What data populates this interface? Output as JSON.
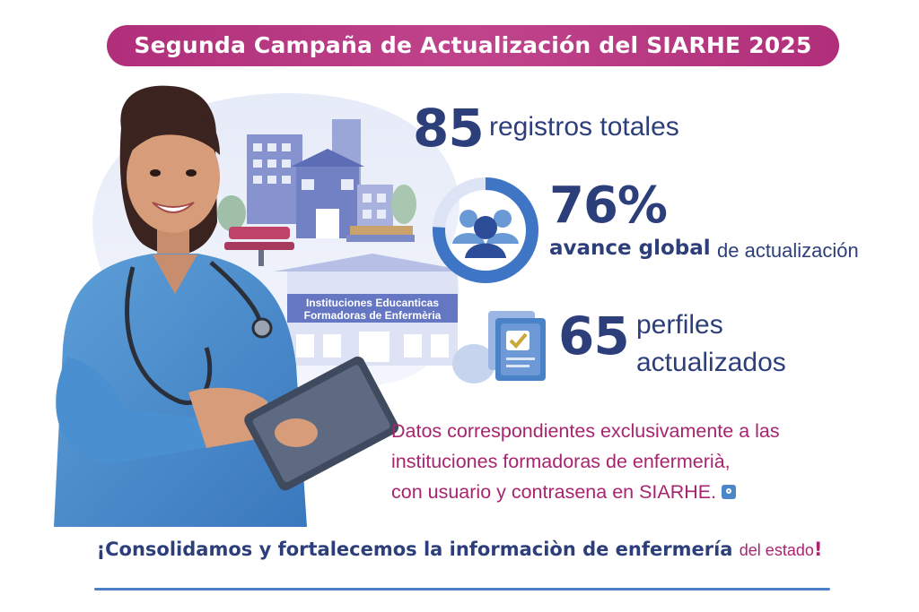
{
  "header": {
    "title": "Segunda Campaña de Actualización del SIARHE 2025"
  },
  "illustration": {
    "sign_line1": "Instituciones Educanticas",
    "sign_line2": "Formadoras de Enfermèria",
    "colors": {
      "scrubs": "#4a8fcf",
      "buildings": "#6f7fc0",
      "bench": "#c0446a",
      "background_blob": "#dfe6f7"
    }
  },
  "stats": {
    "total": {
      "value": "85",
      "label": "registros totales"
    },
    "progress": {
      "value": "76%",
      "fraction": 0.76,
      "label_bold": "avance global",
      "label_rest": "de actualización",
      "icon": "group-people-icon"
    },
    "profiles": {
      "value": "65",
      "label_line1": "perfiles",
      "label_line2": "actualizados",
      "icon": "checked-document-icon"
    }
  },
  "note": {
    "line1": "Datos correspondientes exclusivamente a las",
    "line2": "instituciones formadoras de enfermerià,",
    "line3": "con usuario y contrasena en SIARHE.",
    "icon": "lock-icon"
  },
  "footer": {
    "main": "¡Consolidamos y fortalecemos la informaciòn de enfermería",
    "small": "del estado",
    "end": "!"
  },
  "colors": {
    "accent_magenta": "#b02e7a",
    "navy": "#2d3f7a",
    "blue": "#4d7fc8"
  }
}
